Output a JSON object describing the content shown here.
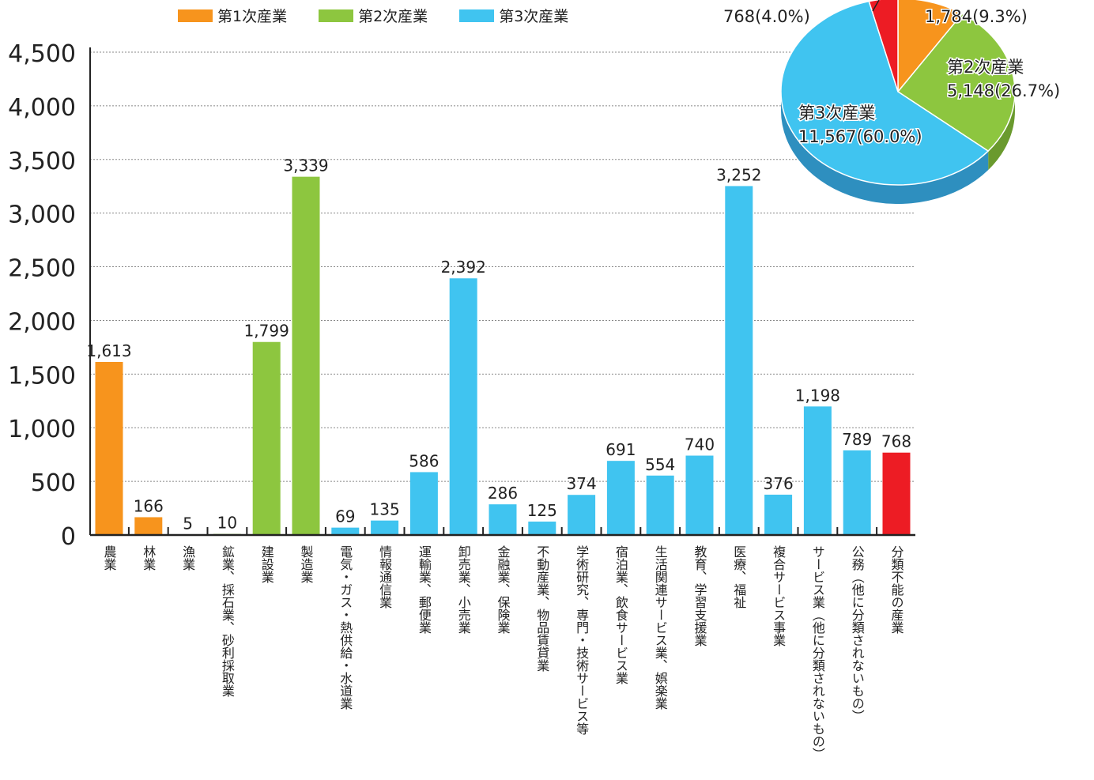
{
  "chart_data": [
    {
      "type": "bar",
      "categories": [
        "農業",
        "林業",
        "漁業",
        "鉱業、採石業、砂利採取業",
        "建設業",
        "製造業",
        "電気・ガス・熱供給・水道業",
        "情報通信業",
        "運輸業、郵便業",
        "卸売業、小売業",
        "金融業、保険業",
        "不動産業、物品賃貸業",
        "学術研究、専門・技術サービス等",
        "宿泊業、飲食サービス業",
        "生活関連サービス業、娯楽業",
        "教育、学習支援業",
        "医療、福祉",
        "複合サービス事業",
        "サービス業（他に分類されないもの）",
        "公務（他に分類されないもの）",
        "分類不能の産業"
      ],
      "values": [
        1613,
        166,
        5,
        10,
        1799,
        3339,
        69,
        135,
        586,
        2392,
        286,
        125,
        374,
        691,
        554,
        740,
        3252,
        376,
        1198,
        789,
        768
      ],
      "value_labels": [
        "1,613",
        "166",
        "5",
        "10",
        "1,799",
        "3,339",
        "69",
        "135",
        "586",
        "2,392",
        "286",
        "125",
        "374",
        "691",
        "554",
        "740",
        "3,252",
        "376",
        "1,198",
        "789",
        "768"
      ],
      "sector": [
        1,
        1,
        1,
        2,
        2,
        2,
        3,
        3,
        3,
        3,
        3,
        3,
        3,
        3,
        3,
        3,
        3,
        3,
        3,
        3,
        0
      ],
      "ylim": [
        0,
        4500
      ],
      "yticks": [
        0,
        500,
        1000,
        1500,
        2000,
        2500,
        3000,
        3500,
        4000,
        4500
      ],
      "ytick_labels": [
        "0",
        "500",
        "1,000",
        "1,500",
        "2,000",
        "2,500",
        "3,000",
        "3,500",
        "4,000",
        "4,500"
      ],
      "grid": true,
      "legend_position": "top-left",
      "legend": [
        "第1次産業",
        "第2次産業",
        "第3次産業"
      ]
    },
    {
      "type": "pie",
      "slices": [
        {
          "name": "第1次産業",
          "value": 1784,
          "value_label": "1,784",
          "percent_label": "(9.3%)"
        },
        {
          "name": "第2次産業",
          "value": 5148,
          "value_label": "5,148",
          "percent_label": "(26.7%)"
        },
        {
          "name": "第3次産業",
          "value": 11567,
          "value_label": "11,567",
          "percent_label": "(60.0%)"
        },
        {
          "name": "分類不能の産業",
          "value": 768,
          "value_label": "768",
          "percent_label": "(4.0%)"
        }
      ]
    }
  ],
  "colors": {
    "primary": "#F7941D",
    "secondary": "#8DC63F",
    "tertiary": "#40C4F0",
    "unclassified": "#ED1C24",
    "secondary_side": "#6A9A2E",
    "tertiary_side": "#2E8FBF",
    "axis": "#222222",
    "grid": "#888888"
  }
}
